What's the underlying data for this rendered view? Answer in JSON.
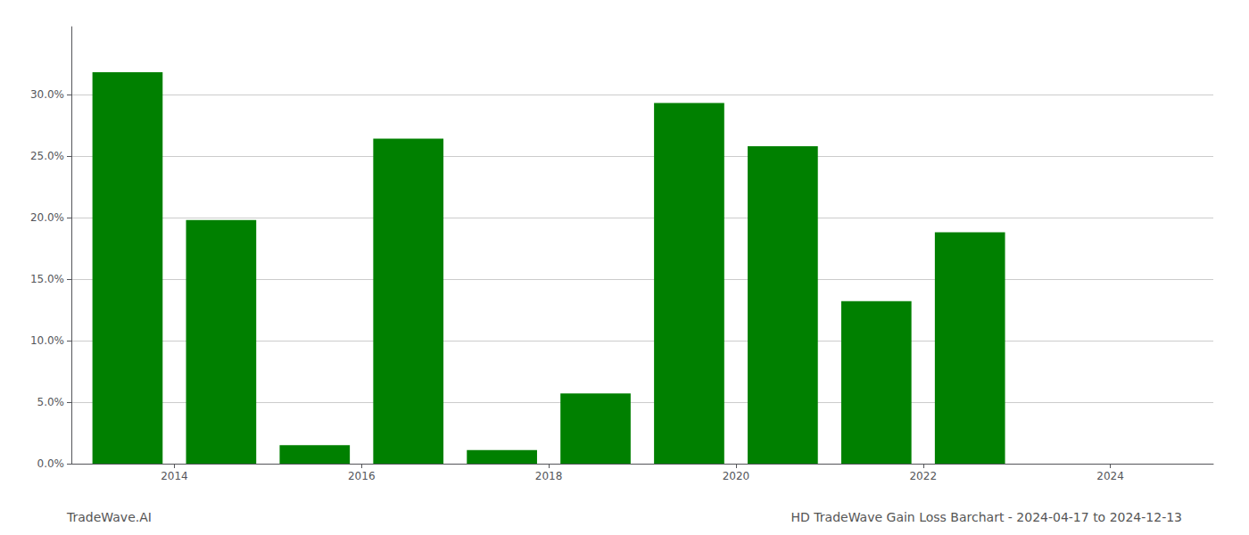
{
  "chart_data": {
    "type": "bar",
    "title": "HD TradeWave Gain Loss Barchart - 2024-04-17 to 2024-12-13",
    "annotations": [
      "TradeWave.AI"
    ],
    "x": [
      2013,
      2014,
      2015,
      2016,
      2017,
      2018,
      2019,
      2020,
      2021,
      2022,
      2023
    ],
    "values": [
      0.318,
      0.198,
      0.015,
      0.264,
      0.011,
      0.057,
      0.293,
      0.258,
      0.132,
      0.188,
      0.0
    ],
    "color": "#008000",
    "xlim": [
      2012.4,
      2024.6
    ],
    "xticks": [
      {
        "value": 2013.5,
        "label": "2014"
      },
      {
        "value": 2015.5,
        "label": "2016"
      },
      {
        "value": 2017.5,
        "label": "2018"
      },
      {
        "value": 2019.5,
        "label": "2020"
      },
      {
        "value": 2021.5,
        "label": "2022"
      },
      {
        "value": 2023.5,
        "label": "2024"
      }
    ],
    "ylim": [
      0.0,
      0.355
    ],
    "yticks": [
      {
        "value": 0.0,
        "label": "0.0%"
      },
      {
        "value": 0.05,
        "label": "5.0%"
      },
      {
        "value": 0.1,
        "label": "10.0%"
      },
      {
        "value": 0.15,
        "label": "15.0%"
      },
      {
        "value": 0.2,
        "label": "20.0%"
      },
      {
        "value": 0.25,
        "label": "25.0%"
      },
      {
        "value": 0.3,
        "label": "30.0%"
      }
    ],
    "grid": true
  }
}
